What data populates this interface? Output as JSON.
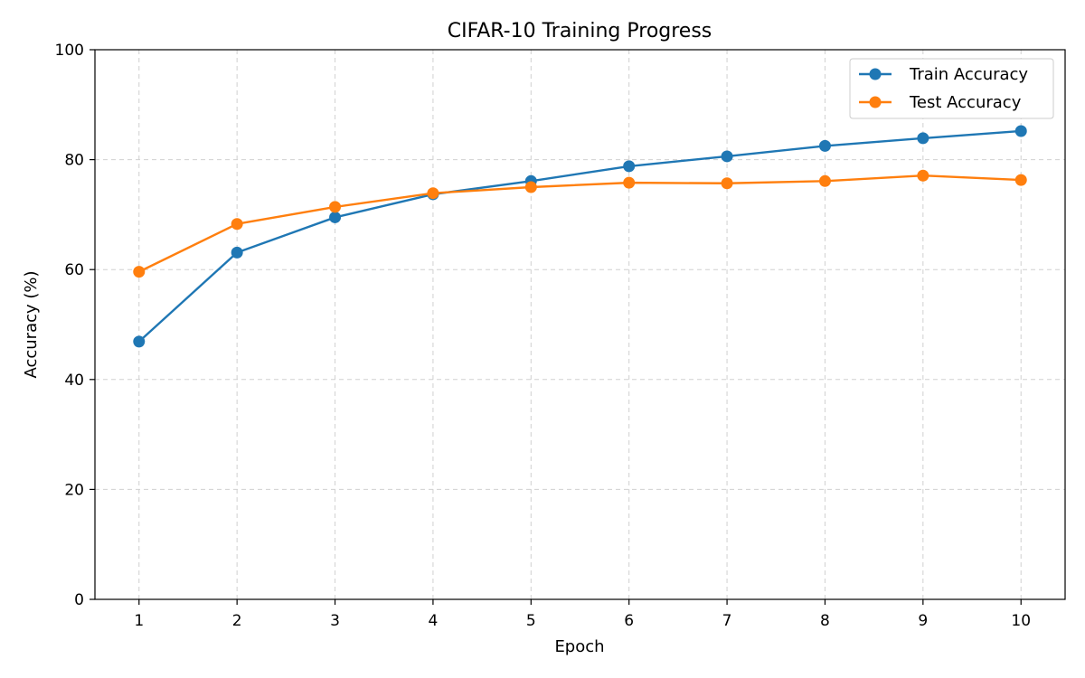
{
  "chart_data": {
    "type": "line",
    "title": "CIFAR-10 Training Progress",
    "xlabel": "Epoch",
    "ylabel": "Accuracy (%)",
    "x": [
      1,
      2,
      3,
      4,
      5,
      6,
      7,
      8,
      9,
      10
    ],
    "xticks": [
      "1",
      "2",
      "3",
      "4",
      "5",
      "6",
      "7",
      "8",
      "9",
      "10"
    ],
    "yticks": [
      "0",
      "20",
      "40",
      "60",
      "80",
      "100"
    ],
    "ylim": [
      0,
      100
    ],
    "grid": true,
    "legend_position": "top-right",
    "series": [
      {
        "name": "Train Accuracy",
        "color": "#1f77b4",
        "values": [
          46.9,
          63.1,
          69.5,
          73.7,
          76.1,
          78.8,
          80.6,
          82.5,
          83.9,
          85.2
        ]
      },
      {
        "name": "Test Accuracy",
        "color": "#ff7f0e",
        "values": [
          59.6,
          68.3,
          71.4,
          73.9,
          75.0,
          75.8,
          75.7,
          76.1,
          77.1,
          76.3
        ]
      }
    ]
  }
}
